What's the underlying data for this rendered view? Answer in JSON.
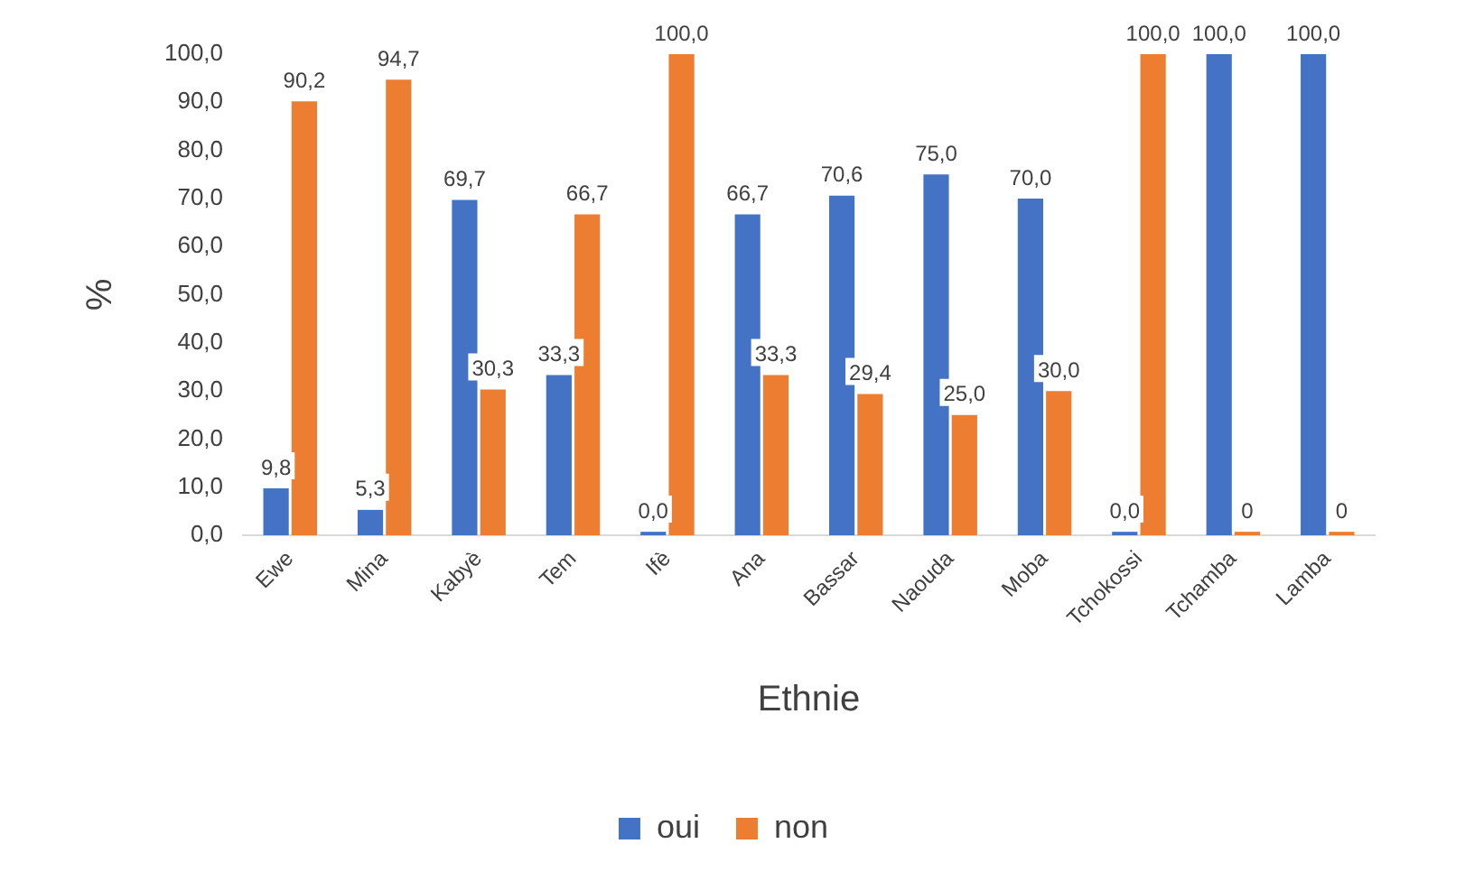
{
  "chart_data": {
    "type": "bar",
    "xlabel": "Ethnie",
    "ylabel": "%",
    "categories": [
      "Ewe",
      "Mina",
      "Kabyè",
      "Tem",
      "Ifè",
      "Ana",
      "Bassar",
      "Naouda",
      "Moba",
      "Tchokossi",
      "Tchamba",
      "Lamba"
    ],
    "series": [
      {
        "name": "oui",
        "color": "#4472c4",
        "values": [
          9.8,
          5.3,
          69.7,
          33.3,
          0,
          66.7,
          70.6,
          75,
          70,
          0,
          100,
          100
        ],
        "value_labels": [
          "9,8",
          "5,3",
          "69,7",
          "33,3",
          "0,0",
          "66,7",
          "70,6",
          "75,0",
          "70,0",
          "0,0",
          "100,0",
          "100,0"
        ]
      },
      {
        "name": "non",
        "color": "#ed7d31",
        "values": [
          90.2,
          94.7,
          30.3,
          66.7,
          100,
          33.3,
          29.4,
          25,
          30,
          100,
          0,
          0
        ],
        "value_labels": [
          "90,2",
          "94,7",
          "30,3",
          "66,7",
          "100,0",
          "33,3",
          "29,4",
          "25,0",
          "30,0",
          "100,0",
          "0",
          "0"
        ]
      }
    ],
    "ylim": [
      0,
      100
    ],
    "yticks": [
      {
        "value": 0,
        "label": "0,0"
      },
      {
        "value": 10,
        "label": "10,0"
      },
      {
        "value": 20,
        "label": "20,0"
      },
      {
        "value": 30,
        "label": "30,0"
      },
      {
        "value": 40,
        "label": "40,0"
      },
      {
        "value": 50,
        "label": "50,0"
      },
      {
        "value": 60,
        "label": "60,0"
      },
      {
        "value": 70,
        "label": "70,0"
      },
      {
        "value": 80,
        "label": "80,0"
      },
      {
        "value": 90,
        "label": "90,0"
      },
      {
        "value": 100,
        "label": "100,0"
      }
    ],
    "grid": false,
    "legend": "bottom"
  }
}
